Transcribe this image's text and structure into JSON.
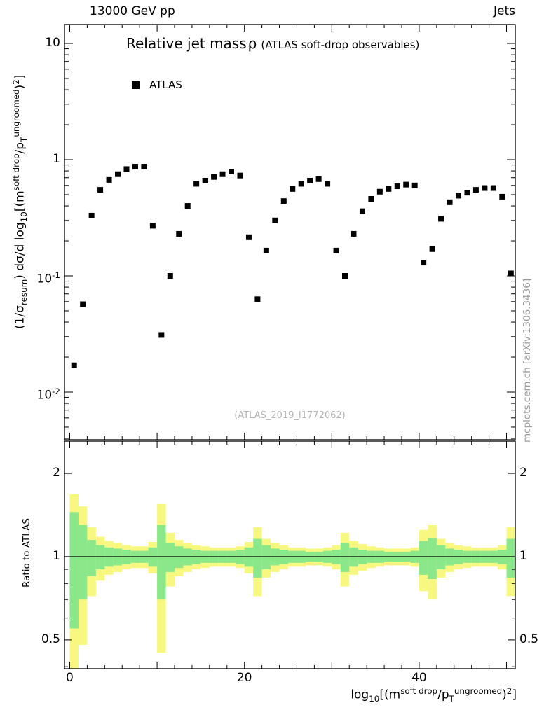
{
  "header": {
    "left": "13000 GeV pp",
    "right": "Jets"
  },
  "plot": {
    "title_main": "Relative jet mass",
    "title_symbol": "ρ",
    "title_note": "(ATLAS soft-drop observables)",
    "legend_label": "ATLAS",
    "watermark": "(ATLAS_2019_I1772062)",
    "side_note": "mcplots.cern.ch [arXiv:1306.3436]",
    "ratio_label": "Ratio to ATLAS",
    "ylabel_segments": [
      {
        "t": "(1/σ"
      },
      {
        "t": "resum",
        "s": "sub"
      },
      {
        "t": ") dσ/d log"
      },
      {
        "t": "10",
        "s": "sub"
      },
      {
        "t": "[(m"
      },
      {
        "t": "soft drop",
        "s": "sup"
      },
      {
        "t": "/p"
      },
      {
        "t": "T",
        "s": "sub"
      },
      {
        "t": "ungroomed",
        "s": "sup"
      },
      {
        "t": ")"
      },
      {
        "t": "2",
        "s": "sup"
      },
      {
        "t": "]"
      }
    ],
    "xlabel_segments": [
      {
        "t": "log"
      },
      {
        "t": "10",
        "s": "sub"
      },
      {
        "t": "[(m"
      },
      {
        "t": "soft drop",
        "s": "sup"
      },
      {
        "t": "/p"
      },
      {
        "t": "T",
        "s": "sub"
      },
      {
        "t": "ungroomed",
        "s": "sup"
      },
      {
        "t": ")"
      },
      {
        "t": "2",
        "s": "sup"
      },
      {
        "t": "]"
      }
    ]
  },
  "colors": {
    "marker": "#000000",
    "frame": "#000000",
    "band_outer": "#f8f880",
    "band_inner": "#8ae88a",
    "watermark_text": "#b3b3b3",
    "side_note_text": "#9a9a9a"
  },
  "chart_data": {
    "type": "scatter",
    "title": "Relative jet mass ρ (ATLAS soft-drop observables)",
    "legend_position": "top-left-inside",
    "x_axis": {
      "label": "log_10[(m^soft drop/p_T^ungroomed)^2]",
      "scale": "linear",
      "range": [
        -0.6,
        51.0
      ],
      "ticks": [
        {
          "v": 0,
          "label": "0"
        },
        {
          "v": 20,
          "label": "20"
        },
        {
          "v": 40,
          "label": "40"
        }
      ]
    },
    "y_axis": {
      "label": "(1/σ_resum) dσ/d log_10[(m^soft drop/p_T^ungroomed)^2]",
      "scale": "log",
      "range": [
        0.0039,
        14.6
      ],
      "tick_labels": [
        {
          "v": 10,
          "base": "10",
          "exp": ""
        },
        {
          "v": 1,
          "base": "1",
          "exp": ""
        },
        {
          "v": 0.1,
          "base": "10",
          "exp": "-1"
        },
        {
          "v": 0.01,
          "base": "10",
          "exp": "-2"
        }
      ]
    },
    "series": [
      {
        "name": "ATLAS",
        "marker": "filled-square",
        "color": "#000000",
        "x": [
          0.5,
          1.5,
          2.5,
          3.5,
          4.5,
          5.5,
          6.5,
          7.5,
          8.5,
          9.5,
          10.5,
          11.5,
          12.5,
          13.5,
          14.5,
          15.5,
          16.5,
          17.5,
          18.5,
          19.5,
          20.5,
          21.5,
          22.5,
          23.5,
          24.5,
          25.5,
          26.5,
          27.5,
          28.5,
          29.5,
          30.5,
          31.5,
          32.5,
          33.5,
          34.5,
          35.5,
          36.5,
          37.5,
          38.5,
          39.5,
          40.5,
          41.5,
          42.5,
          43.5,
          44.5,
          45.5,
          46.5,
          47.5,
          48.5,
          49.5,
          50.5
        ],
        "y": [
          0.017,
          0.057,
          0.33,
          0.55,
          0.67,
          0.75,
          0.83,
          0.87,
          0.87,
          0.27,
          0.031,
          0.1,
          0.23,
          0.4,
          0.62,
          0.66,
          0.71,
          0.75,
          0.79,
          0.73,
          0.215,
          0.063,
          0.165,
          0.3,
          0.44,
          0.56,
          0.62,
          0.66,
          0.68,
          0.62,
          0.165,
          0.1,
          0.23,
          0.36,
          0.46,
          0.53,
          0.56,
          0.59,
          0.61,
          0.6,
          0.13,
          0.17,
          0.31,
          0.43,
          0.49,
          0.52,
          0.55,
          0.57,
          0.57,
          0.48,
          0.105
        ]
      }
    ],
    "ratio_panel": {
      "label": "Ratio to ATLAS",
      "scale": "log",
      "range": [
        0.39,
        2.6
      ],
      "reference_line": 1.0,
      "ticks": [
        {
          "v": 2,
          "label": "2"
        },
        {
          "v": 1,
          "label": "1"
        },
        {
          "v": 0.5,
          "label": "0.5"
        }
      ],
      "band_center": 1.0,
      "band_outer_half_width": [
        0.68,
        0.52,
        0.28,
        0.18,
        0.14,
        0.12,
        0.1,
        0.09,
        0.09,
        0.13,
        0.55,
        0.22,
        0.15,
        0.12,
        0.1,
        0.09,
        0.08,
        0.08,
        0.08,
        0.09,
        0.13,
        0.28,
        0.16,
        0.12,
        0.1,
        0.08,
        0.08,
        0.07,
        0.07,
        0.08,
        0.1,
        0.22,
        0.14,
        0.11,
        0.09,
        0.08,
        0.07,
        0.07,
        0.07,
        0.08,
        0.25,
        0.3,
        0.16,
        0.12,
        0.1,
        0.09,
        0.08,
        0.08,
        0.08,
        0.1,
        0.28
      ],
      "band_inner_half_width": [
        0.45,
        0.3,
        0.15,
        0.1,
        0.08,
        0.07,
        0.06,
        0.05,
        0.05,
        0.08,
        0.3,
        0.12,
        0.09,
        0.07,
        0.06,
        0.05,
        0.05,
        0.05,
        0.05,
        0.06,
        0.08,
        0.16,
        0.1,
        0.07,
        0.06,
        0.05,
        0.05,
        0.04,
        0.04,
        0.05,
        0.06,
        0.12,
        0.08,
        0.06,
        0.05,
        0.05,
        0.04,
        0.04,
        0.04,
        0.05,
        0.14,
        0.17,
        0.1,
        0.07,
        0.06,
        0.05,
        0.05,
        0.05,
        0.05,
        0.06,
        0.16
      ]
    }
  }
}
